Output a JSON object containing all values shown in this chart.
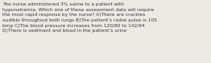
{
  "text": "The nurse administered 3% saline to a patient with\nhyponatremia. Which one of these assessment data will require\nthe most rapid response by the nurse? A)There are crackles\naudible throughout both lungs B)The patient’s radial pulse is 105\nbmp C)The blood pressure increases from 120/80 to 142/94\nD)There is sediment and blood in the patient’s urine",
  "background_color": "#edeae4",
  "text_color": "#3a3a3a",
  "font_size": 4.2,
  "figsize": [
    2.62,
    0.79
  ],
  "dpi": 100
}
